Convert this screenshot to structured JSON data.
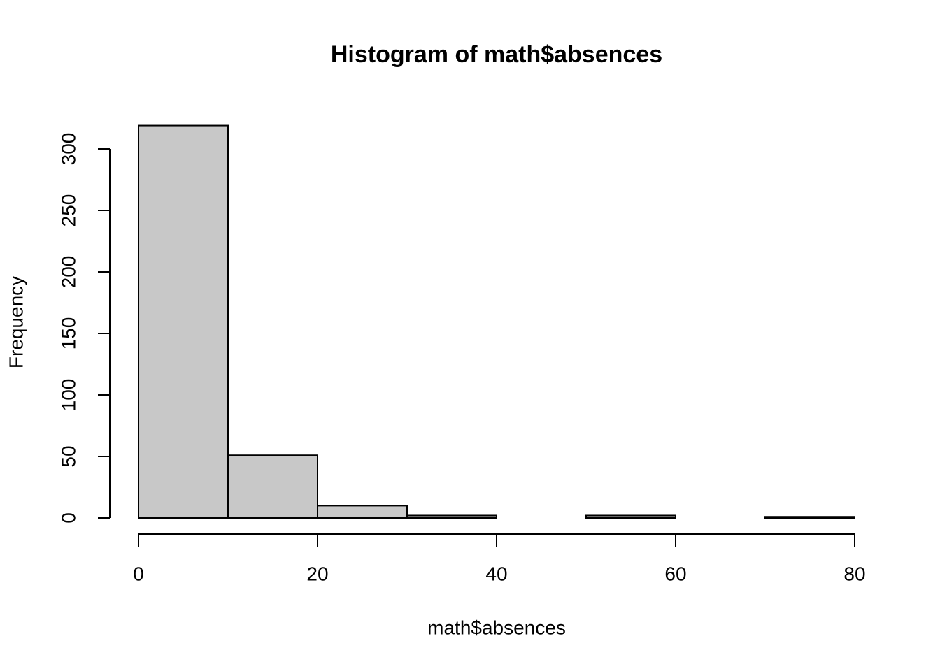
{
  "chart_data": {
    "type": "histogram",
    "title": "Histogram of math$absences",
    "x_label": "math$absences",
    "y_label": "Frequency",
    "bins": [
      0,
      10,
      20,
      30,
      40,
      50,
      60,
      70,
      80
    ],
    "values": [
      319,
      51,
      10,
      2,
      0,
      2,
      0,
      1
    ],
    "color": "#c8c8c8",
    "xlim": [
      0,
      80
    ],
    "xticks": [
      0,
      20,
      40,
      60,
      80
    ],
    "ylim": [
      0,
      300
    ],
    "yticks": [
      0,
      50,
      100,
      150,
      200,
      250,
      300
    ]
  }
}
